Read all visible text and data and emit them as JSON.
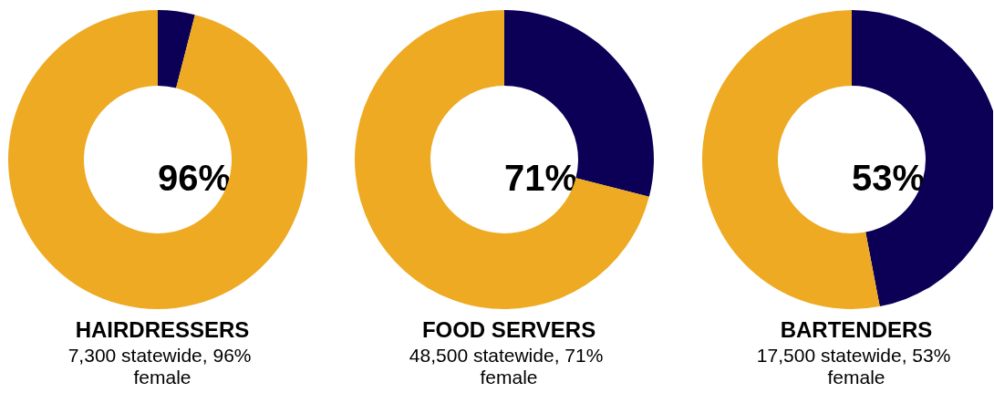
{
  "chart_data": [
    {
      "type": "donut",
      "title": "HAIRDRESSERS",
      "subtitle": "7,300 statewide, 96% female",
      "categories": [
        null,
        null
      ],
      "values": [
        4,
        96
      ],
      "colors": [
        "#0b0055",
        "#edaa22"
      ],
      "annotations": [
        "96%"
      ]
    },
    {
      "type": "donut",
      "title": "FOOD SERVERS",
      "subtitle": "48,500 statewide, 71% female",
      "categories": [
        null,
        null
      ],
      "values": [
        29,
        71
      ],
      "colors": [
        "#0b0055",
        "#edaa22"
      ],
      "annotations": [
        "71%"
      ]
    },
    {
      "type": "donut",
      "title": "BARTENDERS",
      "subtitle": "17,500 statewide, 53% female",
      "categories": [
        null,
        null
      ],
      "values": [
        47,
        53
      ],
      "colors": [
        "#0b0055",
        "#edaa22"
      ],
      "annotations": [
        "53%"
      ]
    }
  ]
}
